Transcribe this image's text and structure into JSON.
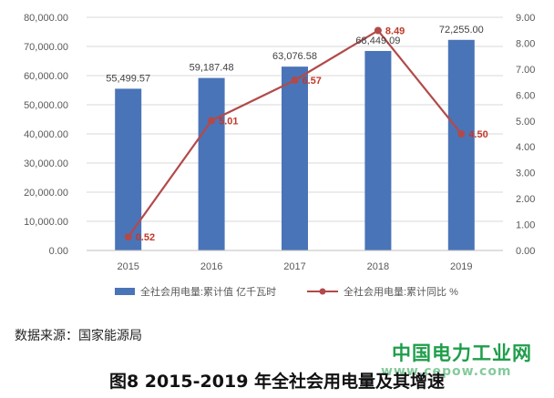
{
  "colors": {
    "bar": "#4a74b8",
    "line": "#b24a4a",
    "marker": "#b24a4a",
    "grid": "#d9d9d9",
    "axis_text": "#595959",
    "brand": "#1f9e4a"
  },
  "chart_data": {
    "type": "bar",
    "categories": [
      "2015",
      "2016",
      "2017",
      "2018",
      "2019"
    ],
    "series": [
      {
        "name": "全社会用电量:累计值 亿千瓦时",
        "type": "bar",
        "axis": "left",
        "values": [
          55499.57,
          59187.48,
          63076.58,
          68449.09,
          72255.0
        ],
        "labels": [
          "55,499.57",
          "59,187.48",
          "63,076.58",
          "68,449.09",
          "72,255.00"
        ]
      },
      {
        "name": "全社会用电量:累计同比 %",
        "type": "line",
        "axis": "right",
        "values": [
          0.52,
          5.01,
          6.57,
          8.49,
          4.5
        ],
        "labels": [
          "0.52",
          "5.01",
          "6.57",
          "8.49",
          "4.50"
        ]
      }
    ],
    "y_left": {
      "lim": [
        0,
        80000
      ],
      "ticks": [
        "0.00",
        "10,000.00",
        "20,000.00",
        "30,000.00",
        "40,000.00",
        "50,000.00",
        "60,000.00",
        "70,000.00",
        "80,000.00"
      ]
    },
    "y_right": {
      "lim": [
        0,
        9
      ],
      "ticks": [
        "0.00",
        "1.00",
        "2.00",
        "3.00",
        "4.00",
        "5.00",
        "6.00",
        "7.00",
        "8.00",
        "9.00"
      ]
    },
    "grid": true,
    "legend_position": "bottom"
  },
  "source_text": "数据来源：国家能源局",
  "caption": "图8 2015-2019 年全社会用电量及其增速",
  "watermark": {
    "brand": "中国电力工业网",
    "url": "www.cepow.com"
  }
}
